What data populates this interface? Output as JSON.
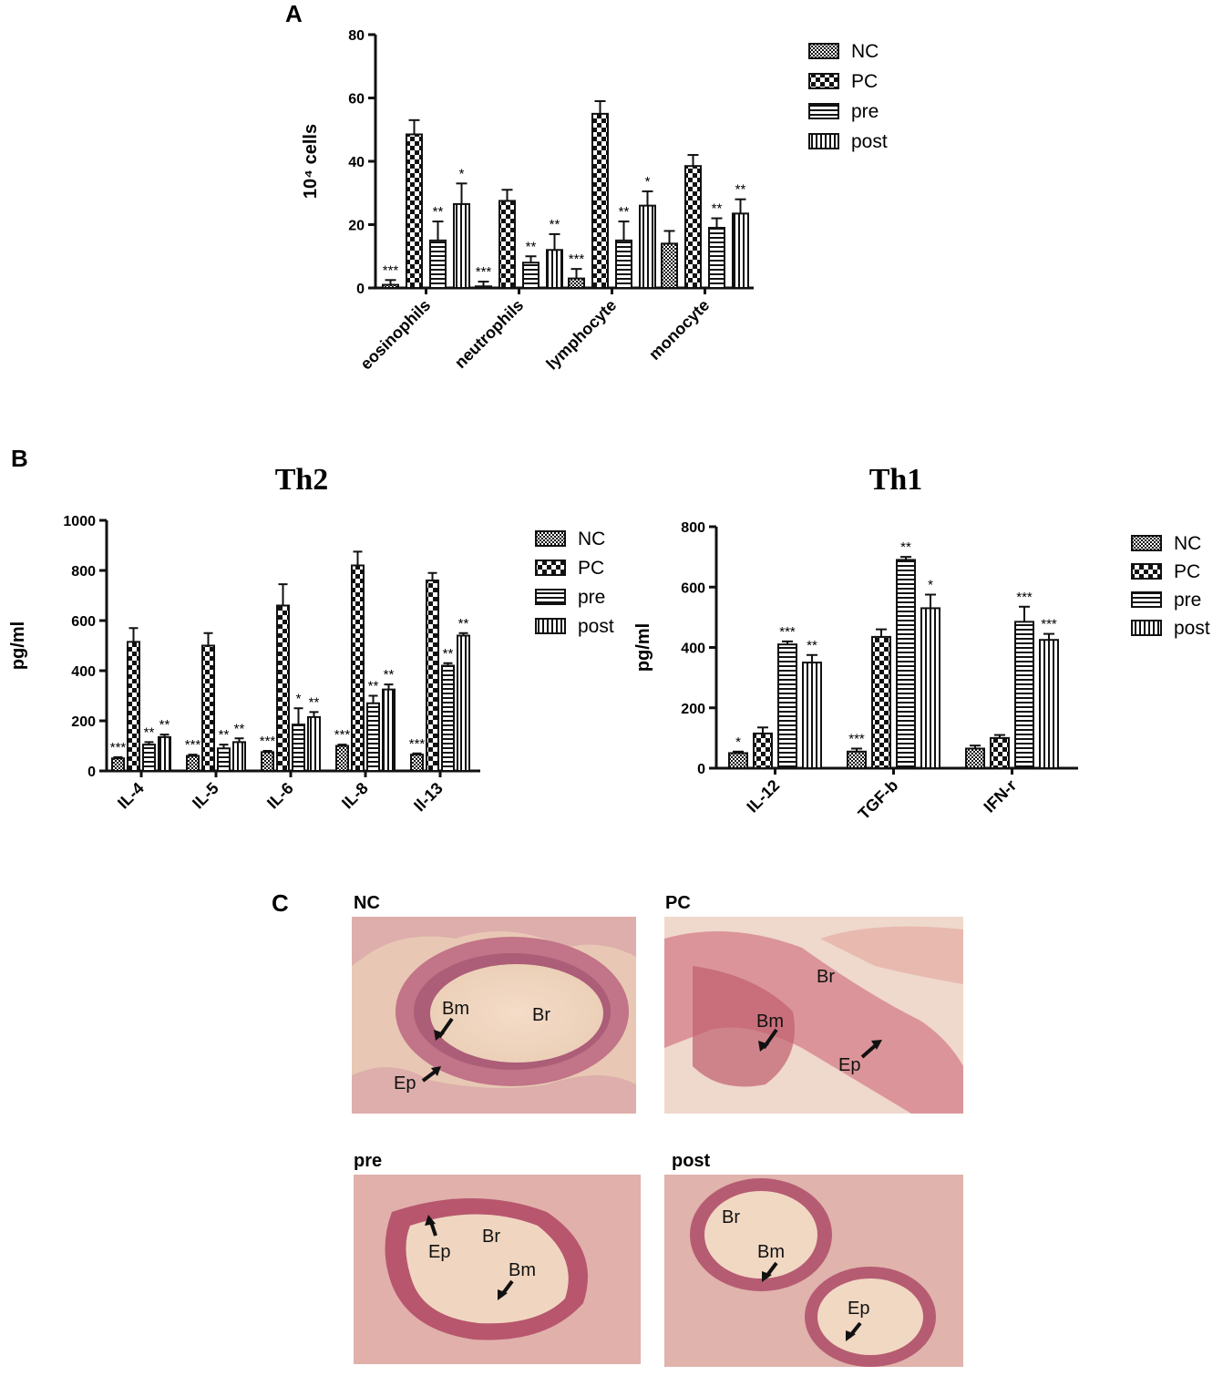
{
  "panels": {
    "a_label": "A",
    "b_label": "B",
    "c_label": "C"
  },
  "legend_labels": [
    "NC",
    "PC",
    "pre",
    "post"
  ],
  "chart_data": [
    {
      "id": "A",
      "type": "bar",
      "title": "",
      "ylabel": "10⁴ cells",
      "ylim": [
        0,
        80
      ],
      "yticks": [
        0,
        20,
        40,
        60,
        80
      ],
      "categories": [
        "eosinophils",
        "neutrophils",
        "lymphocyte",
        "monocyte"
      ],
      "series": [
        {
          "name": "NC",
          "values": [
            1,
            0.5,
            3,
            14
          ],
          "errors": [
            1.5,
            1.5,
            3,
            4
          ],
          "sig": [
            "***",
            "***",
            "***",
            ""
          ]
        },
        {
          "name": "PC",
          "values": [
            48.5,
            27.5,
            55,
            38.5
          ],
          "errors": [
            4.5,
            3.5,
            4,
            3.5
          ],
          "sig": [
            "",
            "",
            "",
            ""
          ]
        },
        {
          "name": "pre",
          "values": [
            15,
            8,
            15,
            19
          ],
          "errors": [
            6,
            2,
            6,
            3
          ],
          "sig": [
            "**",
            "**",
            "**",
            "**"
          ]
        },
        {
          "name": "post",
          "values": [
            26.5,
            12,
            26,
            23.5
          ],
          "errors": [
            6.5,
            5,
            4.5,
            4.5
          ],
          "sig": [
            "*",
            "**",
            "*",
            "**"
          ]
        }
      ],
      "legend_position": "top-right"
    },
    {
      "id": "B-Th2",
      "type": "bar",
      "title": "Th2",
      "ylabel": "pg/ml",
      "ylim": [
        0,
        1000
      ],
      "yticks": [
        0,
        200,
        400,
        600,
        800,
        1000
      ],
      "categories": [
        "IL-4",
        "IL-5",
        "IL-6",
        "IL-8",
        "Il-13"
      ],
      "series": [
        {
          "name": "NC",
          "values": [
            50,
            60,
            75,
            100,
            65
          ],
          "errors": [
            5,
            5,
            5,
            5,
            5
          ],
          "sig": [
            "***",
            "***",
            "***",
            "***",
            "***"
          ]
        },
        {
          "name": "PC",
          "values": [
            515,
            500,
            660,
            820,
            760
          ],
          "errors": [
            55,
            50,
            85,
            55,
            30
          ],
          "sig": [
            "",
            "",
            "",
            "",
            ""
          ]
        },
        {
          "name": "pre",
          "values": [
            105,
            90,
            185,
            270,
            420
          ],
          "errors": [
            10,
            15,
            65,
            30,
            10
          ],
          "sig": [
            "**",
            "**",
            "*",
            "**",
            "**"
          ]
        },
        {
          "name": "post",
          "values": [
            135,
            115,
            215,
            325,
            540
          ],
          "errors": [
            10,
            15,
            20,
            20,
            10
          ],
          "sig": [
            "**",
            "**",
            "**",
            "**",
            "**"
          ]
        }
      ],
      "legend_position": "top-right"
    },
    {
      "id": "B-Th1",
      "type": "bar",
      "title": "Th1",
      "ylabel": "pg/ml",
      "ylim": [
        0,
        800
      ],
      "yticks": [
        0,
        200,
        400,
        600,
        800
      ],
      "categories": [
        "IL-12",
        "TGF-b",
        "IFN-r"
      ],
      "series": [
        {
          "name": "NC",
          "values": [
            50,
            55,
            65
          ],
          "errors": [
            5,
            10,
            10
          ],
          "sig": [
            "*",
            "***",
            ""
          ]
        },
        {
          "name": "PC",
          "values": [
            115,
            435,
            100
          ],
          "errors": [
            20,
            25,
            10
          ],
          "sig": [
            "",
            "",
            ""
          ]
        },
        {
          "name": "pre",
          "values": [
            410,
            690,
            485
          ],
          "errors": [
            10,
            10,
            50
          ],
          "sig": [
            "***",
            "**",
            "***"
          ]
        },
        {
          "name": "post",
          "values": [
            350,
            530,
            425
          ],
          "errors": [
            25,
            45,
            20
          ],
          "sig": [
            "**",
            "*",
            "***"
          ]
        }
      ],
      "legend_position": "top-right"
    }
  ],
  "histology": [
    {
      "title": "NC",
      "labels": [
        "Bm",
        "Br",
        "Ep"
      ]
    },
    {
      "title": "PC",
      "labels": [
        "Br",
        "Bm",
        "Ep"
      ]
    },
    {
      "title": "pre",
      "labels": [
        "Ep",
        "Br",
        "Bm"
      ]
    },
    {
      "title": "post",
      "labels": [
        "Br",
        "Bm",
        "Ep"
      ]
    }
  ],
  "colors": {
    "axis": "#111111",
    "tissue_background": "#e9c7b0",
    "tissue_stain": "#b85a6e",
    "nuclei": "#6e3d62"
  }
}
